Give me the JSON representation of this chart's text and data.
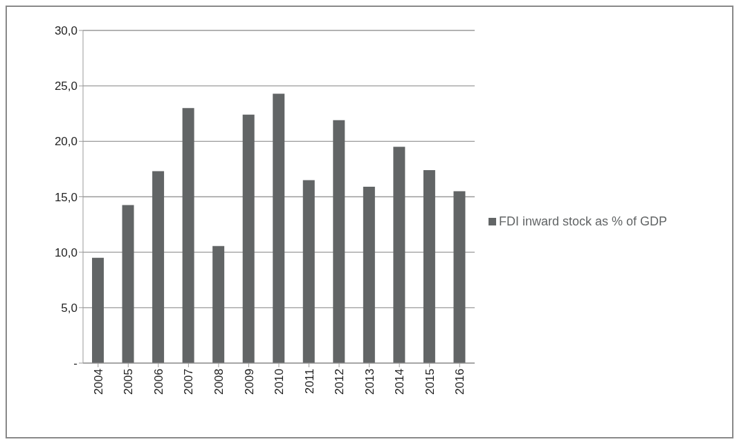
{
  "chart_data": {
    "type": "bar",
    "categories": [
      "2004",
      "2005",
      "2006",
      "2007",
      "2008",
      "2009",
      "2010",
      "2011",
      "2012",
      "2013",
      "2014",
      "2015",
      "2016"
    ],
    "series": [
      {
        "name": "FDI inward stock as % of GDP",
        "color": "#626566",
        "values": [
          9.5,
          14.25,
          17.3,
          23.0,
          10.55,
          22.4,
          24.3,
          16.5,
          21.9,
          15.9,
          19.5,
          17.4,
          15.5
        ]
      }
    ],
    "ylim": [
      0,
      30
    ],
    "yticks": [
      {
        "value": 0,
        "label": "-"
      },
      {
        "value": 5,
        "label": "5,0"
      },
      {
        "value": 10,
        "label": "10,0"
      },
      {
        "value": 15,
        "label": "15,0"
      },
      {
        "value": 20,
        "label": "20,0"
      },
      {
        "value": 25,
        "label": "25,0"
      },
      {
        "value": 30,
        "label": "30,0"
      }
    ],
    "grid": "y",
    "legend": "right"
  }
}
